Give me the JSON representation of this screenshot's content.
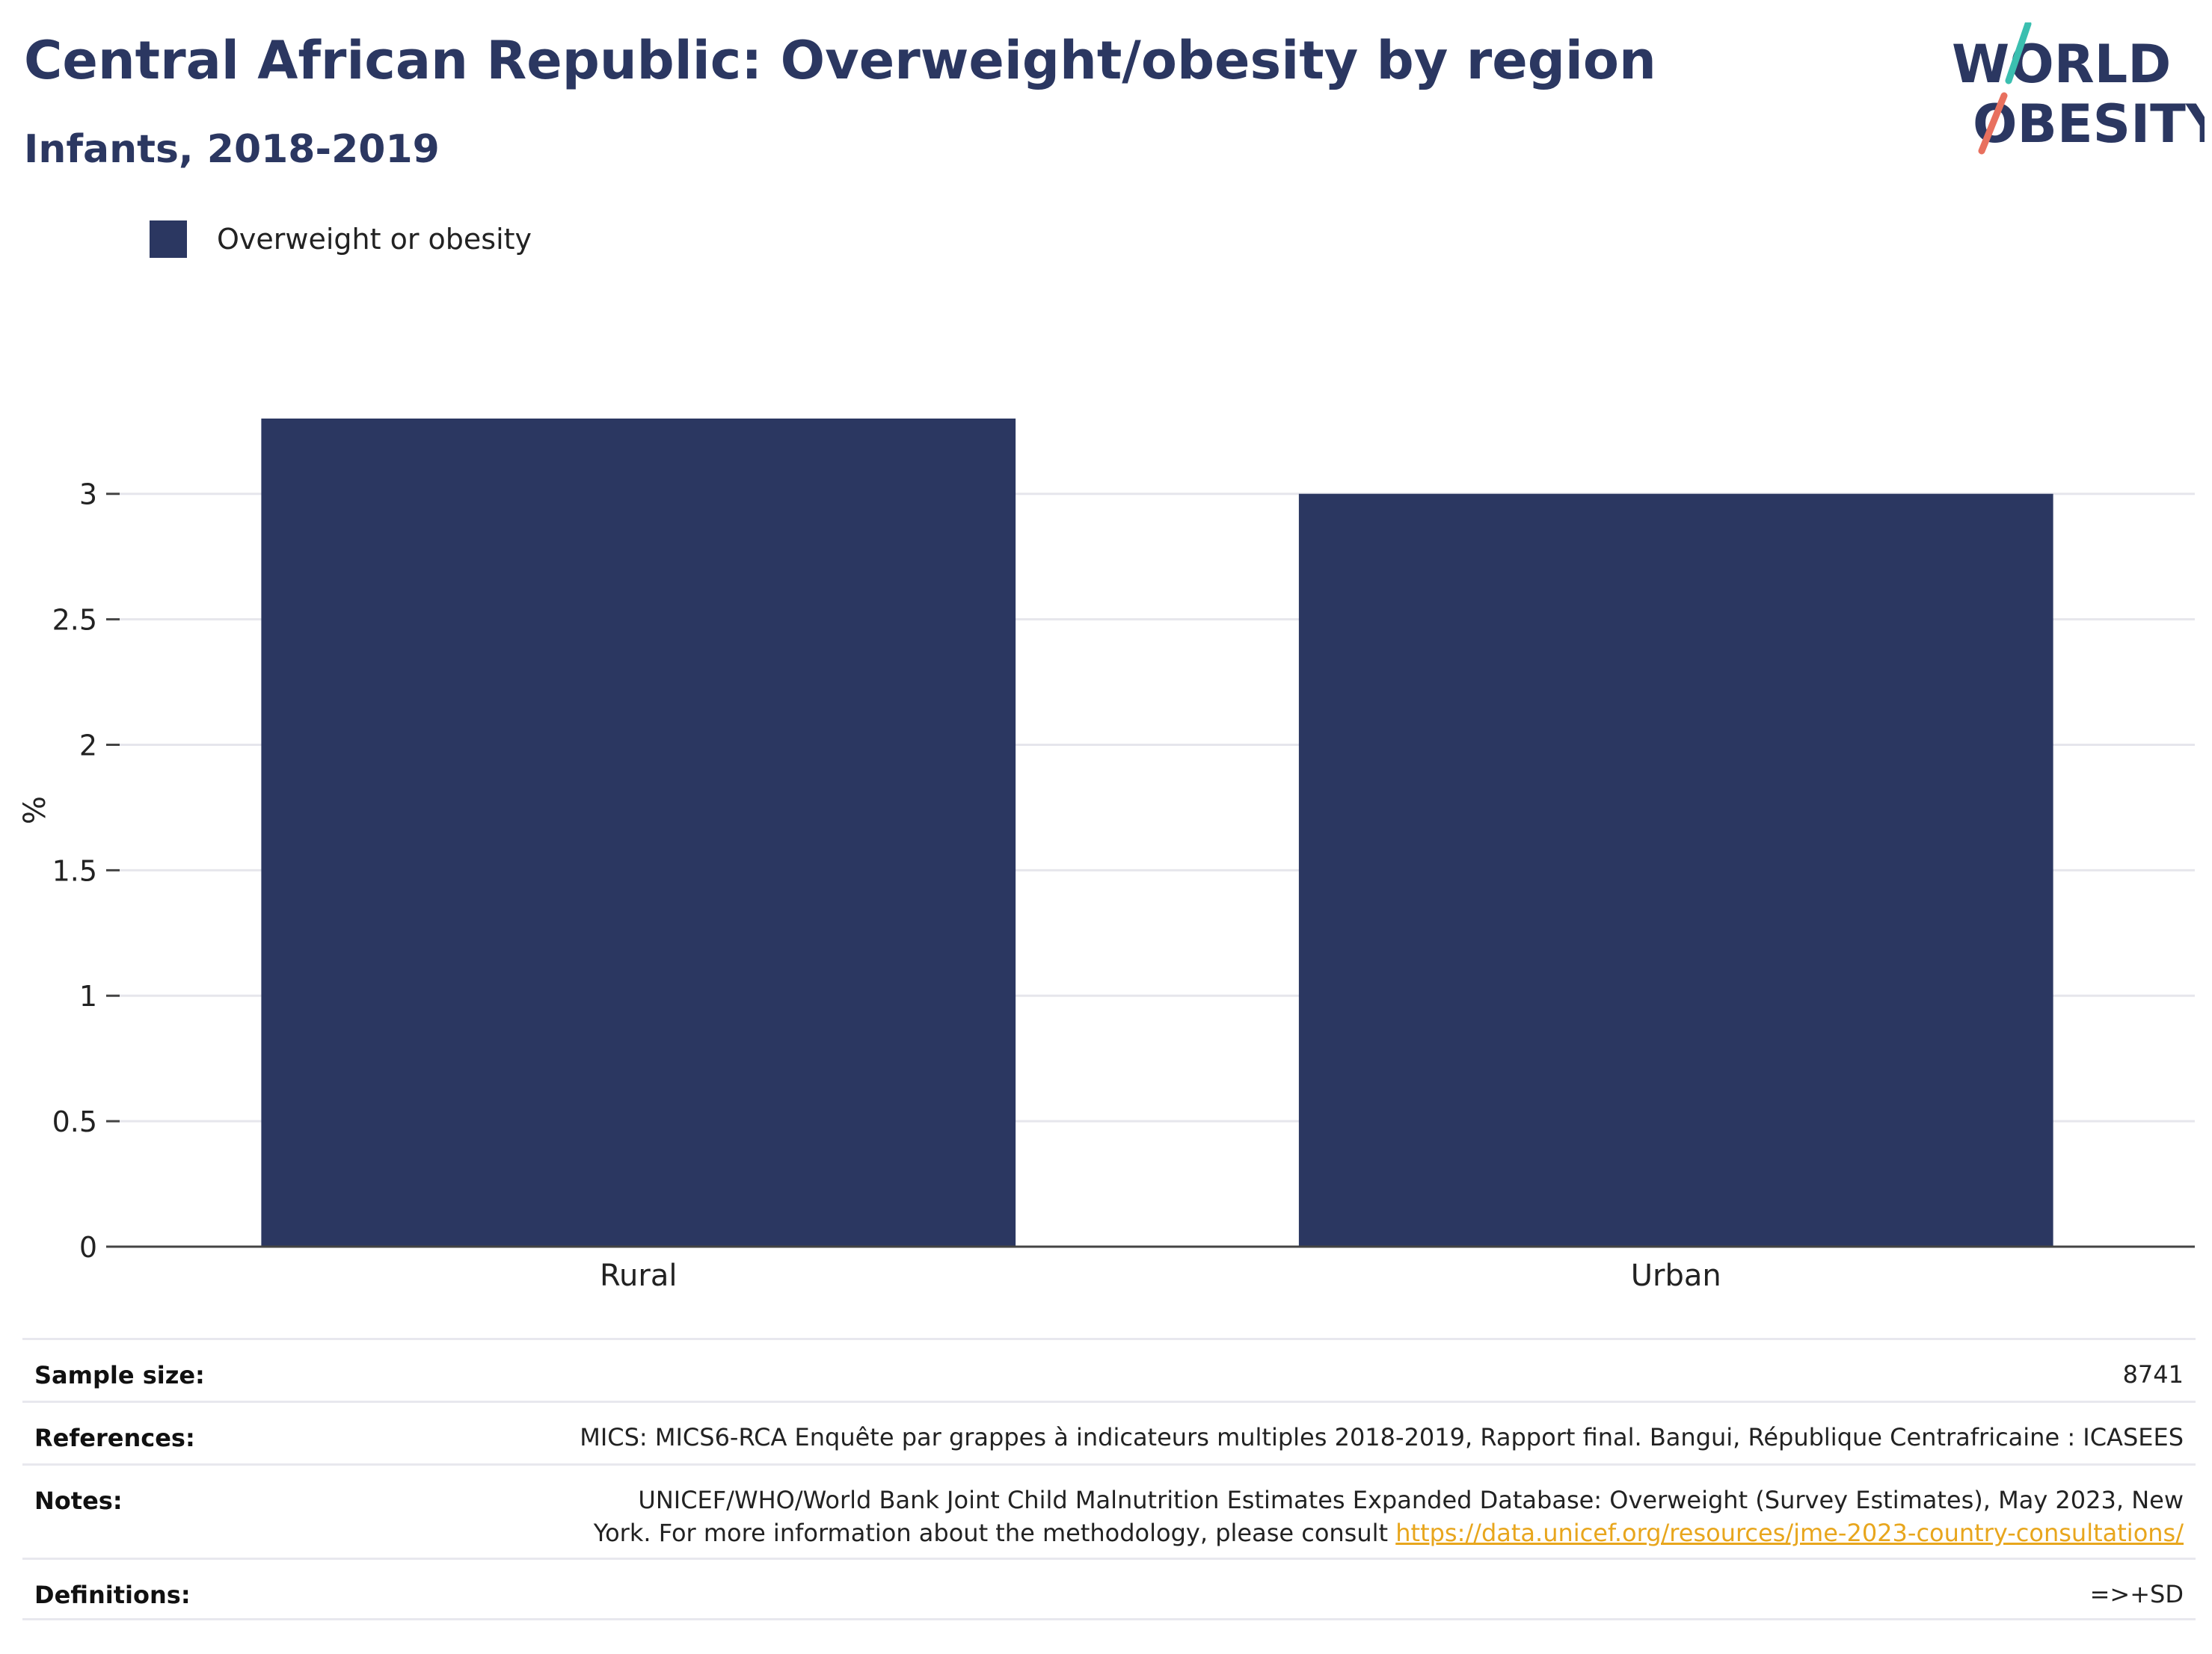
{
  "header": {
    "title": "Central African Republic: Overweight/obesity by region",
    "subtitle": "Infants, 2018-2019"
  },
  "logo": {
    "line1": "WORLD",
    "line2": "OBESITY"
  },
  "colors": {
    "bar": "#2b3761",
    "accent_teal": "#3bbfb0",
    "accent_coral": "#e8705e",
    "link": "#e8a61d"
  },
  "chart_data": {
    "type": "bar",
    "categories": [
      "Rural",
      "Urban"
    ],
    "series": [
      {
        "name": "Overweight or obesity",
        "values": [
          3.3,
          3.0
        ]
      }
    ],
    "ylabel": "%",
    "ylim": [
      0,
      3.3
    ],
    "yticks": [
      0,
      0.5,
      1,
      1.5,
      2,
      2.5,
      3
    ],
    "grid": true,
    "legend": "top-left"
  },
  "info": {
    "sample_size": {
      "label": "Sample size:",
      "value": "8741"
    },
    "references": {
      "label": "References:",
      "value": "MICS: MICS6-RCA Enquête par grappes à indicateurs multiples 2018-2019, Rapport final. Bangui, République Centrafricaine : ICASEES"
    },
    "notes": {
      "label": "Notes:",
      "line1": "UNICEF/WHO/World Bank Joint Child Malnutrition Estimates Expanded Database: Overweight (Survey Estimates), May 2023, New",
      "line2": "York. For more information about the methodology, please consult ",
      "link": "https://data.unicef.org/resources/jme-2023-country-consultations/"
    },
    "definitions": {
      "label": "Definitions:",
      "value": "=>+SD"
    }
  }
}
